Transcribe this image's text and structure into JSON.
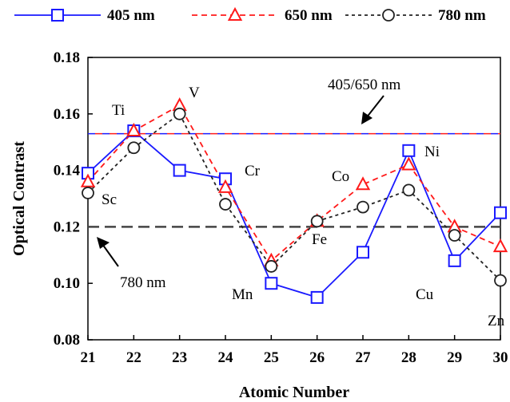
{
  "chart_data": {
    "type": "line",
    "x": [
      21,
      22,
      23,
      24,
      25,
      26,
      27,
      28,
      29,
      30
    ],
    "xlabel": "Atomic Number",
    "ylabel": "Optical Contrast",
    "xlim": [
      21,
      30
    ],
    "ylim": [
      0.08,
      0.18
    ],
    "yticks": [
      "0.08",
      "0.10",
      "0.12",
      "0.14",
      "0.16",
      "0.18"
    ],
    "xticks": [
      "21",
      "22",
      "23",
      "24",
      "25",
      "26",
      "27",
      "28",
      "29",
      "30"
    ],
    "legend_position": "top",
    "series": [
      {
        "name": "405 nm",
        "color": "#1a1aff",
        "dash": "solid",
        "marker": "square",
        "values": [
          0.139,
          0.154,
          0.14,
          0.137,
          0.1,
          0.095,
          0.111,
          0.147,
          0.108,
          0.125
        ]
      },
      {
        "name": "650 nm",
        "color": "#ff1a1a",
        "dash": "dashed",
        "marker": "triangle",
        "values": [
          0.136,
          0.154,
          0.163,
          0.134,
          0.108,
          0.122,
          0.135,
          0.142,
          0.12,
          0.113
        ]
      },
      {
        "name": "780 nm",
        "color": "#222222",
        "dash": "dashed",
        "marker": "circle",
        "values": [
          0.132,
          0.148,
          0.16,
          0.128,
          0.106,
          0.122,
          0.127,
          0.133,
          0.117,
          0.101
        ]
      }
    ],
    "reference_lines": [
      {
        "label": "405/650 nm",
        "y": 0.153,
        "color": "#1a1aff",
        "color2": "#ff1a1a"
      },
      {
        "label": "780 nm",
        "y": 0.12,
        "color": "#444444"
      }
    ],
    "element_labels": [
      {
        "text": "Sc",
        "x": 21,
        "series": "780 nm"
      },
      {
        "text": "Ti",
        "x": 22,
        "series": "405 nm"
      },
      {
        "text": "V",
        "x": 23,
        "series": "650 nm"
      },
      {
        "text": "Cr",
        "x": 24,
        "series": "405 nm"
      },
      {
        "text": "Mn",
        "x": 25,
        "series": "405 nm"
      },
      {
        "text": "Fe",
        "x": 26,
        "series": "780 nm"
      },
      {
        "text": "Co",
        "x": 27,
        "series": "650 nm"
      },
      {
        "text": "Ni",
        "x": 28,
        "series": "405 nm"
      },
      {
        "text": "Cu",
        "x": 29,
        "series": "405 nm"
      },
      {
        "text": "Zn",
        "x": 30,
        "series": "780 nm"
      }
    ]
  }
}
